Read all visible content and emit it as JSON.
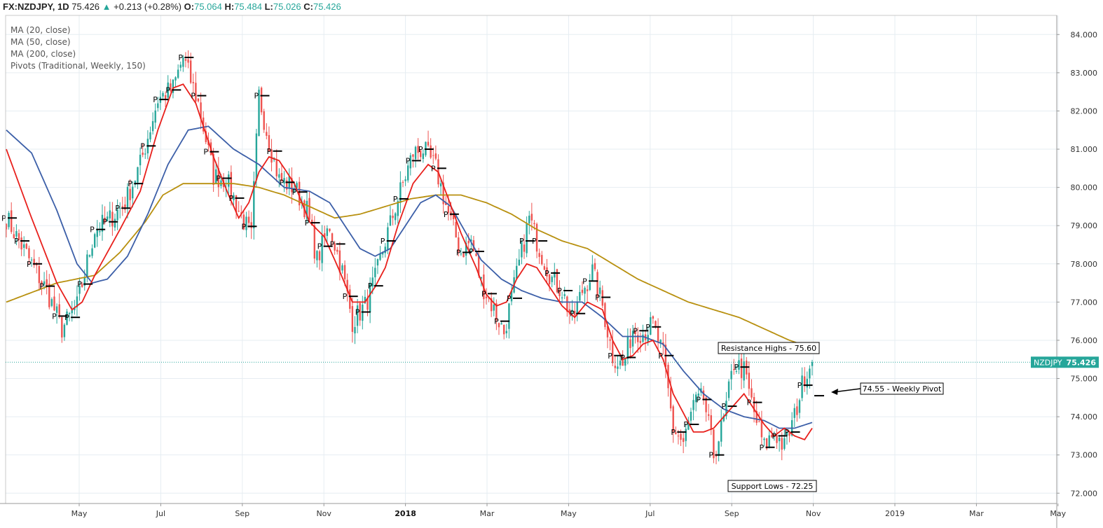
{
  "header": {
    "symbol": "FX:NZDJPY, 1D",
    "last": "75.426",
    "change_arrow": "▲",
    "change": "+0.213 (+0.28%)",
    "o_label": "O:",
    "o_val": "75.064",
    "h_label": "H:",
    "h_val": "75.484",
    "l_label": "L:",
    "l_val": "75.026",
    "c_label": "C:",
    "c_val": "75.426"
  },
  "colors": {
    "up": "#26a69a",
    "down": "#ef5350",
    "ma20": "#e8201c",
    "ma50": "#3c5fa8",
    "ma200": "#b8900f",
    "pivot": "#000000",
    "grid": "#e6edf2",
    "last_line": "#26a69a"
  },
  "chart_data": {
    "type": "candlestick",
    "title": "FX:NZDJPY, 1D",
    "legend": [
      "MA (20, close)",
      "MA (50, close)",
      "MA (200, close)",
      "Pivots (Traditional, Weekly, 150)"
    ],
    "x_ticks": [
      "May",
      "Jul",
      "Sep",
      "Nov",
      "2018",
      "Mar",
      "May",
      "Jul",
      "Sep",
      "Nov",
      "2019",
      "Mar",
      "May"
    ],
    "x_ticks_bold": [
      "2018"
    ],
    "y_ticks": [
      "72.000",
      "73.000",
      "74.000",
      "75.000",
      "76.000",
      "77.000",
      "78.000",
      "79.000",
      "80.000",
      "81.000",
      "82.000",
      "83.000",
      "84.000"
    ],
    "ylim": [
      71.73,
      84.5
    ],
    "last_price_label": "NZDJPY",
    "last_price": 75.426,
    "close_path": [
      [
        0,
        79.2
      ],
      [
        10,
        78.0
      ],
      [
        16,
        77.3
      ],
      [
        22,
        76.3
      ],
      [
        28,
        76.9
      ],
      [
        35,
        78.9
      ],
      [
        40,
        79.1
      ],
      [
        47,
        79.6
      ],
      [
        53,
        80.6
      ],
      [
        60,
        82.3
      ],
      [
        66,
        82.6
      ],
      [
        70,
        83.4
      ],
      [
        76,
        82.2
      ],
      [
        82,
        80.3
      ],
      [
        87,
        80.2
      ],
      [
        92,
        79.4
      ],
      [
        97,
        78.7
      ],
      [
        100,
        82.4
      ],
      [
        104,
        81.2
      ],
      [
        108,
        80.2
      ],
      [
        114,
        80.0
      ],
      [
        119,
        79.4
      ],
      [
        123,
        78.1
      ],
      [
        128,
        79.0
      ],
      [
        133,
        77.8
      ],
      [
        137,
        76.5
      ],
      [
        142,
        76.9
      ],
      [
        146,
        77.6
      ],
      [
        150,
        78.6
      ],
      [
        155,
        79.7
      ],
      [
        161,
        80.9
      ],
      [
        165,
        81.0
      ],
      [
        170,
        80.5
      ],
      [
        175,
        79.3
      ],
      [
        180,
        78.3
      ],
      [
        184,
        78.6
      ],
      [
        188,
        77.5
      ],
      [
        193,
        76.8
      ],
      [
        197,
        76.2
      ],
      [
        202,
        77.7
      ],
      [
        207,
        79.2
      ],
      [
        211,
        78.4
      ],
      [
        216,
        77.6
      ],
      [
        220,
        77.3
      ],
      [
        224,
        76.5
      ],
      [
        228,
        77.3
      ],
      [
        232,
        77.8
      ],
      [
        236,
        76.9
      ],
      [
        240,
        75.6
      ],
      [
        244,
        75.3
      ],
      [
        248,
        76.3
      ],
      [
        252,
        76.2
      ],
      [
        256,
        76.4
      ],
      [
        260,
        75.6
      ],
      [
        264,
        73.7
      ],
      [
        268,
        73.3
      ],
      [
        272,
        74.3
      ],
      [
        276,
        74.5
      ],
      [
        280,
        73.0
      ],
      [
        284,
        73.9
      ],
      [
        288,
        75.4
      ],
      [
        292,
        75.2
      ],
      [
        296,
        74.1
      ],
      [
        300,
        73.2
      ],
      [
        304,
        73.6
      ],
      [
        308,
        73.2
      ],
      [
        312,
        74.0
      ],
      [
        316,
        75.1
      ],
      [
        319,
        75.43
      ]
    ],
    "ma20_path": [
      [
        0,
        81.0
      ],
      [
        10,
        79.2
      ],
      [
        20,
        77.5
      ],
      [
        26,
        76.8
      ],
      [
        30,
        77.0
      ],
      [
        35,
        77.7
      ],
      [
        45,
        78.9
      ],
      [
        53,
        79.9
      ],
      [
        60,
        81.5
      ],
      [
        66,
        82.6
      ],
      [
        70,
        82.7
      ],
      [
        75,
        82.2
      ],
      [
        82,
        80.8
      ],
      [
        88,
        79.8
      ],
      [
        92,
        79.2
      ],
      [
        96,
        79.6
      ],
      [
        100,
        80.4
      ],
      [
        104,
        80.8
      ],
      [
        108,
        80.7
      ],
      [
        114,
        80.1
      ],
      [
        120,
        79.1
      ],
      [
        126,
        78.7
      ],
      [
        132,
        77.8
      ],
      [
        137,
        77.0
      ],
      [
        142,
        77.0
      ],
      [
        146,
        77.4
      ],
      [
        150,
        77.9
      ],
      [
        155,
        79.0
      ],
      [
        161,
        80.1
      ],
      [
        167,
        80.6
      ],
      [
        171,
        80.4
      ],
      [
        175,
        79.7
      ],
      [
        180,
        78.8
      ],
      [
        186,
        77.9
      ],
      [
        190,
        77.2
      ],
      [
        194,
        76.9
      ],
      [
        198,
        77.0
      ],
      [
        202,
        77.6
      ],
      [
        206,
        78.0
      ],
      [
        210,
        77.9
      ],
      [
        215,
        77.4
      ],
      [
        220,
        76.9
      ],
      [
        225,
        76.6
      ],
      [
        230,
        77.0
      ],
      [
        236,
        76.8
      ],
      [
        240,
        76.0
      ],
      [
        244,
        75.5
      ],
      [
        248,
        75.6
      ],
      [
        252,
        75.9
      ],
      [
        256,
        76.0
      ],
      [
        260,
        75.5
      ],
      [
        264,
        74.6
      ],
      [
        268,
        74.1
      ],
      [
        272,
        73.6
      ],
      [
        276,
        73.6
      ],
      [
        280,
        73.7
      ],
      [
        284,
        74.0
      ],
      [
        288,
        74.3
      ],
      [
        292,
        74.6
      ],
      [
        296,
        74.2
      ],
      [
        300,
        73.8
      ],
      [
        304,
        73.5
      ],
      [
        308,
        73.7
      ],
      [
        312,
        73.5
      ],
      [
        316,
        73.4
      ],
      [
        319,
        73.7
      ]
    ],
    "ma50_path": [
      [
        0,
        81.5
      ],
      [
        10,
        80.9
      ],
      [
        20,
        79.4
      ],
      [
        28,
        78.0
      ],
      [
        34,
        77.5
      ],
      [
        40,
        77.6
      ],
      [
        48,
        78.2
      ],
      [
        56,
        79.3
      ],
      [
        64,
        80.6
      ],
      [
        72,
        81.5
      ],
      [
        80,
        81.6
      ],
      [
        90,
        81.0
      ],
      [
        100,
        80.6
      ],
      [
        110,
        80.0
      ],
      [
        120,
        79.9
      ],
      [
        128,
        79.6
      ],
      [
        134,
        79.0
      ],
      [
        140,
        78.4
      ],
      [
        146,
        78.2
      ],
      [
        152,
        78.4
      ],
      [
        158,
        79.0
      ],
      [
        164,
        79.6
      ],
      [
        170,
        79.8
      ],
      [
        176,
        79.5
      ],
      [
        182,
        78.8
      ],
      [
        188,
        78.1
      ],
      [
        196,
        77.6
      ],
      [
        204,
        77.3
      ],
      [
        212,
        77.1
      ],
      [
        220,
        77.0
      ],
      [
        228,
        77.0
      ],
      [
        236,
        76.6
      ],
      [
        244,
        76.1
      ],
      [
        252,
        76.1
      ],
      [
        260,
        75.9
      ],
      [
        268,
        75.2
      ],
      [
        276,
        74.6
      ],
      [
        284,
        74.2
      ],
      [
        292,
        74.0
      ],
      [
        300,
        73.9
      ],
      [
        306,
        73.7
      ],
      [
        312,
        73.7
      ],
      [
        319,
        73.85
      ]
    ],
    "ma200_path": [
      [
        0,
        77.0
      ],
      [
        20,
        77.5
      ],
      [
        35,
        77.7
      ],
      [
        45,
        78.3
      ],
      [
        55,
        79.1
      ],
      [
        62,
        79.8
      ],
      [
        70,
        80.1
      ],
      [
        80,
        80.1
      ],
      [
        90,
        80.1
      ],
      [
        100,
        80.0
      ],
      [
        110,
        79.8
      ],
      [
        120,
        79.5
      ],
      [
        130,
        79.2
      ],
      [
        140,
        79.3
      ],
      [
        150,
        79.5
      ],
      [
        160,
        79.7
      ],
      [
        170,
        79.8
      ],
      [
        180,
        79.8
      ],
      [
        190,
        79.6
      ],
      [
        200,
        79.3
      ],
      [
        210,
        78.9
      ],
      [
        220,
        78.6
      ],
      [
        230,
        78.4
      ],
      [
        240,
        78.0
      ],
      [
        250,
        77.6
      ],
      [
        260,
        77.3
      ],
      [
        270,
        77.0
      ],
      [
        280,
        76.8
      ],
      [
        290,
        76.6
      ],
      [
        300,
        76.3
      ],
      [
        310,
        76.0
      ],
      [
        319,
        75.8
      ]
    ],
    "annotations": [
      {
        "text": "Resistance Highs - 75.60",
        "price": 75.6
      },
      {
        "text": "74.55 - Weekly Pivot",
        "price": 74.55
      },
      {
        "text": "Support Lows - 72.25",
        "price": 72.25
      }
    ],
    "pivot_label": "P"
  }
}
